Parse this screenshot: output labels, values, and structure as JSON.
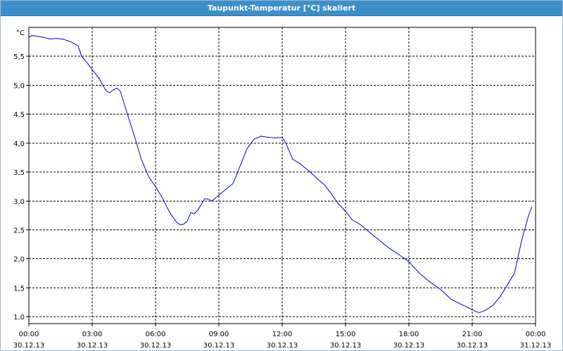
{
  "window": {
    "title": "Taupunkt-Temperatur [°C] skaliert"
  },
  "colors": {
    "titlebar": "#3d8fc9",
    "line": "#0000cc",
    "grid": "#000000",
    "axis": "#000000"
  },
  "chart_data": {
    "type": "line",
    "title": "Taupunkt-Temperatur [°C] skaliert",
    "ylabel": "°C",
    "xlabel": "",
    "grid": true,
    "ylim": [
      0.88,
      6.0
    ],
    "xlim": [
      0,
      24
    ],
    "y_ticks": [
      "1,0",
      "1,5",
      "2,0",
      "2,5",
      "3,0",
      "3,5",
      "4,0",
      "4,5",
      "5,0",
      "5,5"
    ],
    "y_tick_values": [
      1.0,
      1.5,
      2.0,
      2.5,
      3.0,
      3.5,
      4.0,
      4.5,
      5.0,
      5.5
    ],
    "x_ticks": [
      {
        "time": "00:00",
        "date": "30.12.13"
      },
      {
        "time": "03:00",
        "date": "30.12.13"
      },
      {
        "time": "06:00",
        "date": "30.12.13"
      },
      {
        "time": "09:00",
        "date": "30.12.13"
      },
      {
        "time": "12:00",
        "date": "30.12.13"
      },
      {
        "time": "15:00",
        "date": "30.12.13"
      },
      {
        "time": "18:00",
        "date": "30.12.13"
      },
      {
        "time": "21:00",
        "date": "30.12.13"
      },
      {
        "time": "00:00",
        "date": "31.12.13"
      }
    ],
    "x_tick_values": [
      0,
      3,
      6,
      9,
      12,
      15,
      18,
      21,
      24
    ],
    "series": [
      {
        "x": [
          0.0,
          0.17,
          0.33,
          0.67,
          1.0,
          1.33,
          1.67,
          2.0,
          2.33,
          2.5,
          2.67,
          3.0,
          3.33,
          3.5,
          3.67,
          3.83,
          4.0,
          4.17,
          4.33,
          4.5,
          4.67,
          5.0,
          5.33,
          5.67,
          6.0,
          6.33,
          6.67,
          7.0,
          7.17,
          7.33,
          7.5,
          7.67,
          7.83,
          8.0,
          8.33,
          8.5,
          8.67,
          9.0,
          9.33,
          9.67,
          10.0,
          10.33,
          10.67,
          11.0,
          11.33,
          11.67,
          12.0,
          12.17,
          12.5,
          12.83,
          13.33,
          13.67,
          14.0,
          14.33,
          14.67,
          15.0,
          15.33,
          15.67,
          16.0,
          16.5,
          17.0,
          17.5,
          18.0,
          18.5,
          19.0,
          19.5,
          20.0,
          20.5,
          21.0,
          21.17,
          21.33,
          21.5,
          21.67,
          22.0,
          22.33,
          22.67,
          23.0,
          23.33,
          23.67,
          23.83
        ],
        "y": [
          5.83,
          5.86,
          5.85,
          5.83,
          5.8,
          5.81,
          5.79,
          5.75,
          5.68,
          5.5,
          5.43,
          5.27,
          5.12,
          5.0,
          4.9,
          4.87,
          4.92,
          4.95,
          4.9,
          4.7,
          4.5,
          4.12,
          3.72,
          3.42,
          3.25,
          3.05,
          2.8,
          2.63,
          2.59,
          2.6,
          2.65,
          2.8,
          2.78,
          2.84,
          3.04,
          3.03,
          3.0,
          3.1,
          3.2,
          3.3,
          3.6,
          3.9,
          4.07,
          4.12,
          4.1,
          4.09,
          4.1,
          4.0,
          3.72,
          3.65,
          3.5,
          3.38,
          3.28,
          3.12,
          2.95,
          2.82,
          2.67,
          2.6,
          2.5,
          2.35,
          2.2,
          2.08,
          1.95,
          1.75,
          1.6,
          1.47,
          1.3,
          1.21,
          1.12,
          1.09,
          1.07,
          1.09,
          1.12,
          1.2,
          1.35,
          1.55,
          1.75,
          2.3,
          2.75,
          2.9
        ]
      }
    ]
  }
}
